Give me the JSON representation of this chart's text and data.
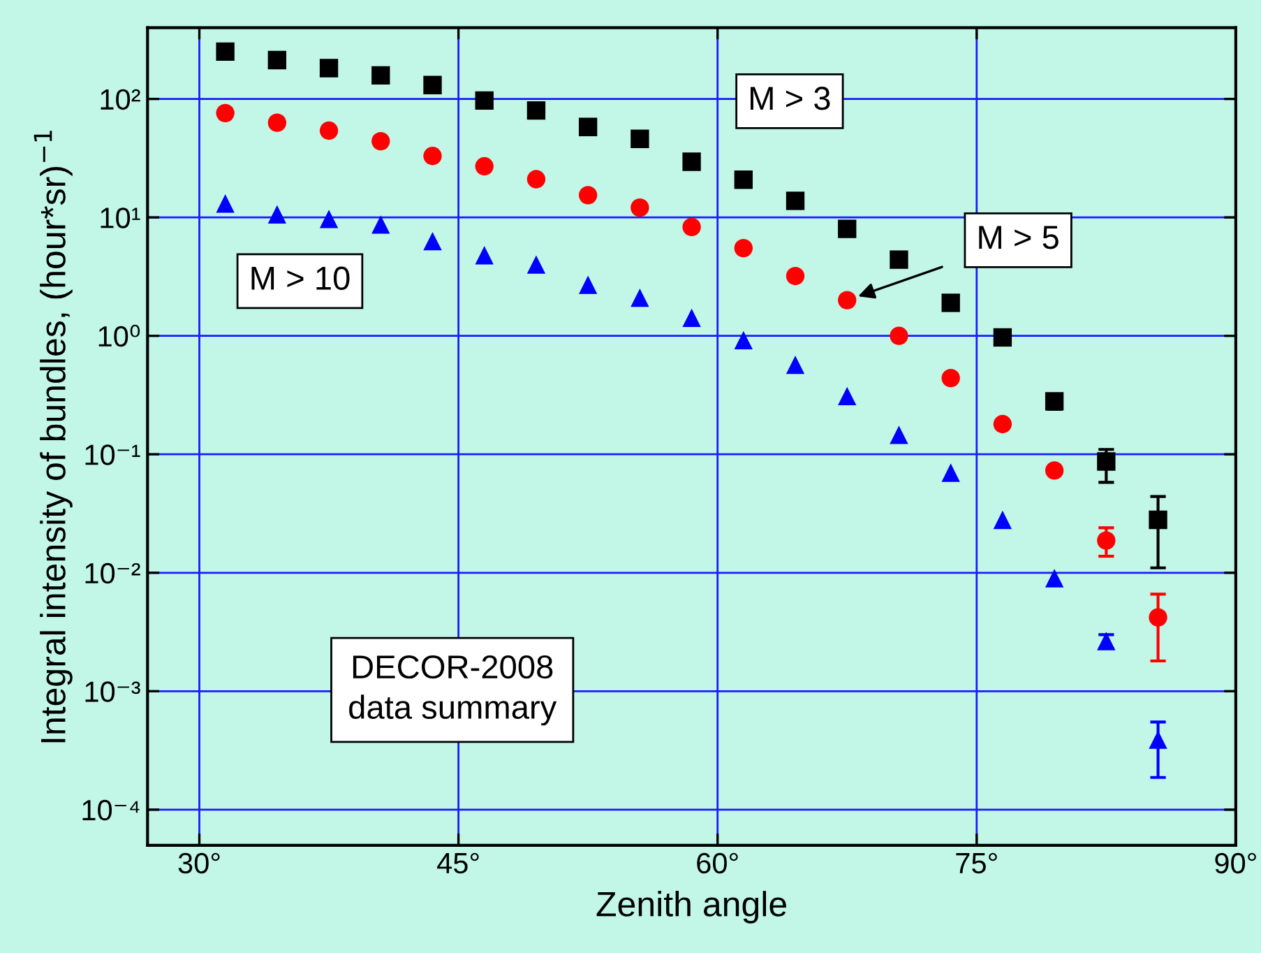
{
  "chart_data": {
    "type": "scatter",
    "xlabel": "Zenith angle",
    "ylabel": "Integral intensity of bundles, (hour*sr)$^{−1}$",
    "x": [
      31.5,
      34.5,
      37.5,
      40.5,
      43.5,
      46.5,
      49.5,
      52.5,
      55.5,
      58.5,
      61.5,
      64.5,
      67.5,
      70.5,
      73.5,
      76.5,
      79.5,
      82.5,
      85.5
    ],
    "series": [
      {
        "name": "M > 3",
        "color": "#000000",
        "marker": "square",
        "values": [
          251,
          213,
          182,
          158,
          131,
          97,
          80,
          58,
          46,
          29.5,
          20.8,
          13.8,
          8.0,
          4.4,
          1.9,
          0.97,
          0.28,
          0.087,
          0.028
        ],
        "errors": [
          null,
          null,
          null,
          null,
          null,
          null,
          null,
          null,
          null,
          null,
          null,
          null,
          null,
          null,
          null,
          null,
          [
            0.24,
            0.31
          ],
          [
            0.058,
            0.11
          ],
          [
            0.011,
            0.044
          ]
        ]
      },
      {
        "name": "M > 5",
        "color": "#ff0000",
        "marker": "circle",
        "values": [
          76,
          63,
          54,
          44,
          33,
          27,
          21,
          15.4,
          12.1,
          8.3,
          5.5,
          3.2,
          2.0,
          1.0,
          0.44,
          0.18,
          0.073,
          0.0187,
          0.0042
        ],
        "errors": [
          null,
          null,
          null,
          null,
          null,
          null,
          null,
          null,
          null,
          null,
          null,
          null,
          null,
          null,
          null,
          null,
          null,
          [
            0.0138,
            0.024
          ],
          [
            0.0018,
            0.0066
          ]
        ]
      },
      {
        "name": "M > 10",
        "color": "#0000ff",
        "marker": "triangle",
        "values": [
          13.1,
          10.6,
          9.7,
          8.7,
          6.3,
          4.8,
          4.0,
          2.7,
          2.1,
          1.42,
          0.92,
          0.57,
          0.31,
          0.146,
          0.07,
          0.028,
          0.009,
          0.00265,
          0.00039
        ],
        "errors": [
          null,
          null,
          null,
          null,
          null,
          null,
          null,
          null,
          null,
          null,
          null,
          null,
          null,
          null,
          null,
          null,
          null,
          [
            0.0023,
            0.003
          ],
          [
            0.000187,
            0.00055
          ]
        ]
      }
    ],
    "annotations": [
      "DECOR-2008\ndata summary"
    ],
    "log": "y",
    "xlim": [
      27,
      90
    ],
    "xticks": [
      {
        "value": 30,
        "label": "30°"
      },
      {
        "value": 45,
        "label": "45°"
      },
      {
        "value": 60,
        "label": "60°"
      },
      {
        "value": 75,
        "label": "75°"
      },
      {
        "value": 90,
        "label": "90°"
      }
    ],
    "ylim": [
      5e-05,
      400
    ],
    "yticks": [
      {
        "value": 0.0001,
        "label": "10⁻⁴"
      },
      {
        "value": 0.001,
        "label": "10⁻³"
      },
      {
        "value": 0.01,
        "label": "10⁻²"
      },
      {
        "value": 0.1,
        "label": "10⁻¹"
      },
      {
        "value": 1,
        "label": "10⁰"
      },
      {
        "value": 10,
        "label": "10¹"
      },
      {
        "value": 100,
        "label": "10²"
      }
    ],
    "grid": true,
    "legend": false
  }
}
